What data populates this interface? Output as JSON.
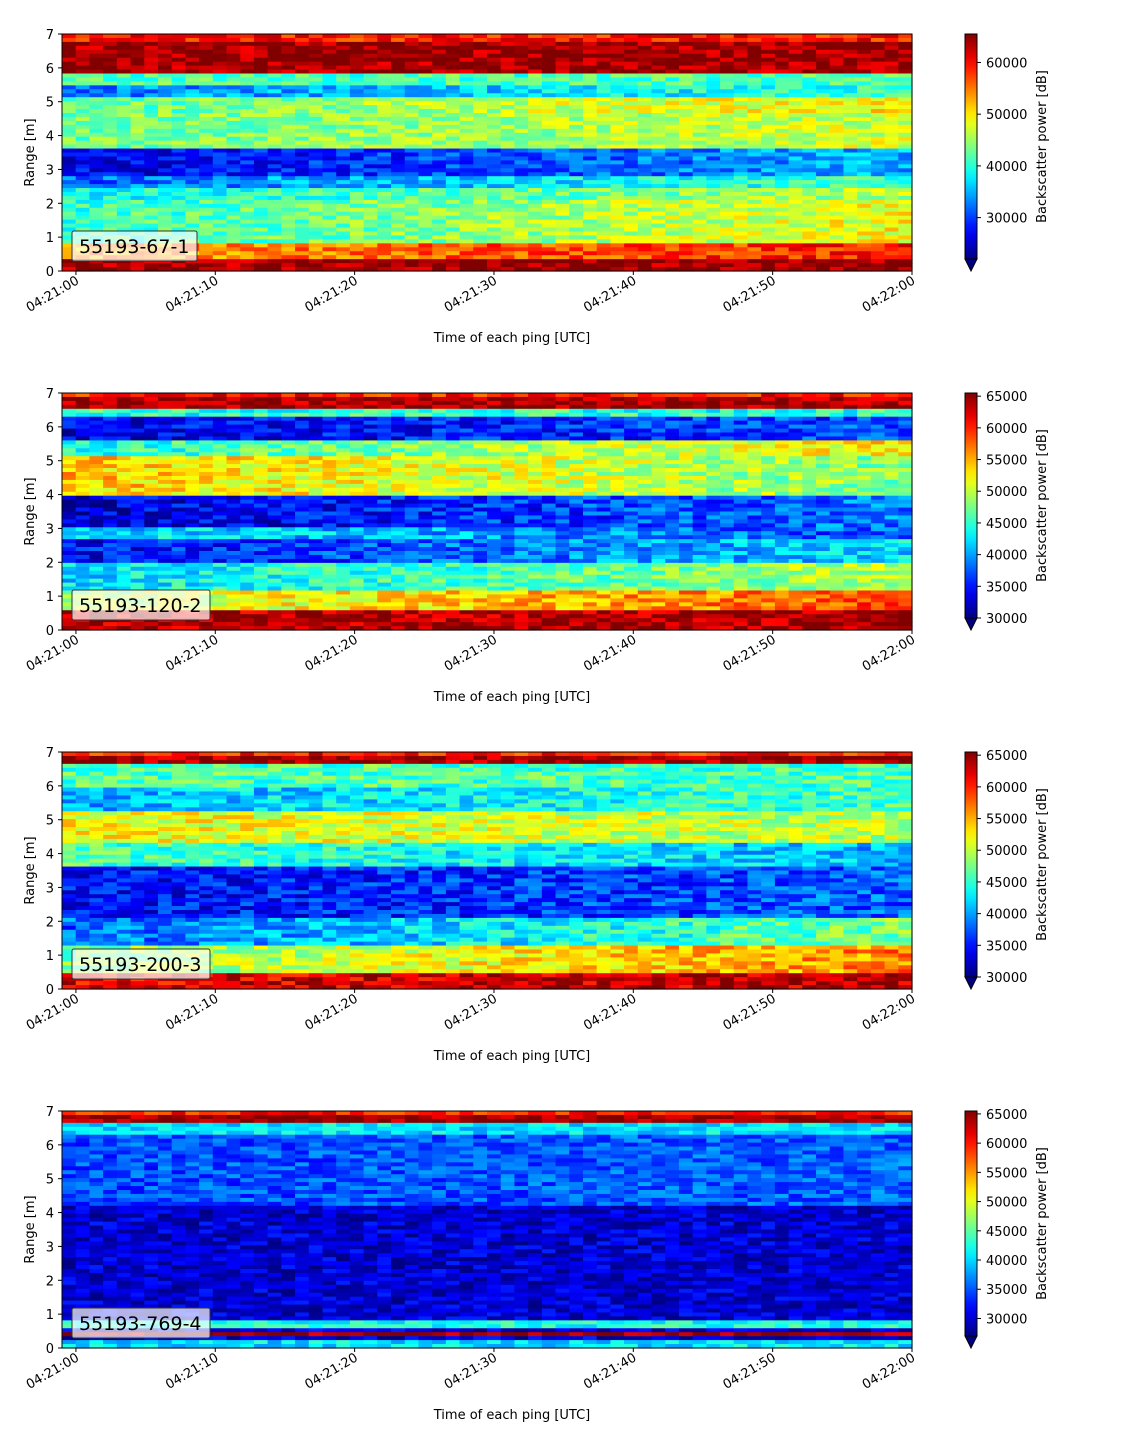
{
  "chart_data": [
    {
      "type": "heatmap",
      "label": "55193-67-1",
      "xlabel": "Time of each ping [UTC]",
      "ylabel": "Range [m]",
      "x_ticks": [
        "04:21:00",
        "04:21:10",
        "04:21:20",
        "04:21:30",
        "04:21:40",
        "04:21:50",
        "04:22:00"
      ],
      "x_range": [
        "04:20:59",
        "04:22:00"
      ],
      "ylim": [
        0,
        7
      ],
      "y_ticks": [
        0,
        1,
        2,
        3,
        4,
        5,
        6,
        7
      ],
      "colorbar": {
        "label": "Backscatter power [dB]",
        "vmin": 22000,
        "vmax": 65500,
        "ticks": [
          30000,
          40000,
          50000,
          60000
        ],
        "extend": "min",
        "colormap": "jet"
      },
      "profile": {
        "bottom_band": [
          0.25,
          1.15
        ],
        "bands": [
          {
            "center": 6.85,
            "width": 0.25,
            "level": 0.97,
            "t1": 0.97
          },
          {
            "center": 6.35,
            "width": 0.3,
            "level": 0.72,
            "t1": 0.85
          },
          {
            "center": 5.5,
            "width": 0.9,
            "level": 0.42,
            "t1": 0.62
          },
          {
            "center": 4.75,
            "width": 0.25,
            "level": 0.38,
            "t1": 0.55
          },
          {
            "center": 4.4,
            "width": 0.3,
            "level": 0.22,
            "t1": 0.45
          },
          {
            "center": 3.8,
            "width": 0.55,
            "level": 0.1,
            "t1": 0.3
          },
          {
            "center": 2.8,
            "width": 0.7,
            "level": 0.48,
            "t1": 0.58
          },
          {
            "center": 2.15,
            "width": 0.35,
            "level": 0.46,
            "t1": 0.65
          },
          {
            "center": 1.7,
            "width": 0.25,
            "level": 0.25,
            "t1": 0.42
          },
          {
            "center": 1.35,
            "width": 0.2,
            "level": 0.45,
            "t1": 0.45
          }
        ],
        "noise": 0.09
      }
    },
    {
      "type": "heatmap",
      "label": "55193-120-2",
      "xlabel": "Time of each ping [UTC]",
      "ylabel": "Range [m]",
      "x_ticks": [
        "04:21:00",
        "04:21:10",
        "04:21:20",
        "04:21:30",
        "04:21:40",
        "04:21:50",
        "04:22:00"
      ],
      "x_range": [
        "04:20:59",
        "04:22:00"
      ],
      "ylim": [
        0,
        7
      ],
      "y_ticks": [
        0,
        1,
        2,
        3,
        4,
        5,
        6,
        7
      ],
      "colorbar": {
        "label": "Backscatter power [dB]",
        "vmin": 30000,
        "vmax": 65500,
        "ticks": [
          30000,
          35000,
          40000,
          45000,
          50000,
          55000,
          60000,
          65000
        ],
        "extend": "min",
        "colormap": "jet"
      },
      "profile": {
        "bottom_band": [
          0.15,
          0.45
        ],
        "bands": [
          {
            "center": 6.75,
            "width": 0.35,
            "level": 0.95,
            "t1": 0.97
          },
          {
            "center": 6.1,
            "width": 0.4,
            "level": 0.55,
            "t1": 0.8
          },
          {
            "center": 5.4,
            "width": 0.5,
            "level": 0.35,
            "t1": 0.55
          },
          {
            "center": 4.8,
            "width": 0.4,
            "level": 0.12,
            "t1": 0.35
          },
          {
            "center": 4.15,
            "width": 0.2,
            "level": 0.35,
            "t1": 0.2
          },
          {
            "center": 3.6,
            "width": 0.6,
            "level": 0.08,
            "t1": 0.25
          },
          {
            "center": 2.4,
            "width": 0.7,
            "level": 0.68,
            "t1": 0.5
          },
          {
            "center": 1.7,
            "width": 0.3,
            "level": 0.4,
            "t1": 0.65
          },
          {
            "center": 1.0,
            "width": 0.35,
            "level": 0.1,
            "t1": 0.2
          },
          {
            "center": 0.6,
            "width": 0.15,
            "level": 0.42,
            "t1": 0.42
          }
        ],
        "noise": 0.1
      }
    },
    {
      "type": "heatmap",
      "label": "55193-200-3",
      "xlabel": "Time of each ping [UTC]",
      "ylabel": "Range [m]",
      "x_ticks": [
        "04:21:00",
        "04:21:10",
        "04:21:20",
        "04:21:30",
        "04:21:40",
        "04:21:50",
        "04:22:00"
      ],
      "x_range": [
        "04:20:59",
        "04:22:00"
      ],
      "ylim": [
        0,
        7
      ],
      "y_ticks": [
        0,
        1,
        2,
        3,
        4,
        5,
        6,
        7
      ],
      "colorbar": {
        "label": "Backscatter power [dB]",
        "vmin": 30000,
        "vmax": 65500,
        "ticks": [
          30000,
          35000,
          40000,
          45000,
          50000,
          55000,
          60000,
          65000
        ],
        "extend": "min",
        "colormap": "jet"
      },
      "profile": {
        "bottom_band": [
          0.15,
          0.4
        ],
        "bands": [
          {
            "center": 6.8,
            "width": 0.3,
            "level": 0.9,
            "t1": 0.95
          },
          {
            "center": 6.1,
            "width": 0.45,
            "level": 0.5,
            "t1": 0.75
          },
          {
            "center": 5.3,
            "width": 0.6,
            "level": 0.22,
            "t1": 0.5
          },
          {
            "center": 4.3,
            "width": 0.8,
            "level": 0.12,
            "t1": 0.22
          },
          {
            "center": 3.0,
            "width": 0.4,
            "level": 0.45,
            "t1": 0.3
          },
          {
            "center": 2.2,
            "width": 0.6,
            "level": 0.62,
            "t1": 0.55
          },
          {
            "center": 1.4,
            "width": 0.4,
            "level": 0.3,
            "t1": 0.45
          },
          {
            "center": 0.75,
            "width": 0.3,
            "level": 0.45,
            "t1": 0.45
          }
        ],
        "noise": 0.1
      }
    },
    {
      "type": "heatmap",
      "label": "55193-769-4",
      "xlabel": "Time of each ping [UTC]",
      "ylabel": "Range [m]",
      "x_ticks": [
        "04:21:00",
        "04:21:10",
        "04:21:20",
        "04:21:30",
        "04:21:40",
        "04:21:50",
        "04:22:00"
      ],
      "x_range": [
        "04:20:59",
        "04:22:00"
      ],
      "ylim": [
        0,
        7
      ],
      "y_ticks": [
        0,
        1,
        2,
        3,
        4,
        5,
        6,
        7
      ],
      "colorbar": {
        "label": "Backscatter power [dB]",
        "vmin": 27000,
        "vmax": 65500,
        "ticks": [
          30000,
          35000,
          40000,
          45000,
          50000,
          55000,
          60000,
          65000
        ],
        "extend": "min",
        "colormap": "jet"
      },
      "profile": {
        "bottom_band": [
          0.15,
          0.3
        ],
        "bands": [
          {
            "center": 6.85,
            "width": 0.2,
            "level": 0.35,
            "t1": 0.35
          },
          {
            "center": 6.55,
            "width": 0.12,
            "level": 0.97,
            "t1": 0.97
          },
          {
            "center": 6.3,
            "width": 0.2,
            "level": 0.4,
            "t1": 0.4
          },
          {
            "center": 4.5,
            "width": 3.2,
            "level": 0.08,
            "t1": 0.08
          },
          {
            "center": 1.9,
            "width": 1.8,
            "level": 0.2,
            "t1": 0.22
          },
          {
            "center": 0.55,
            "width": 0.3,
            "level": 0.35,
            "t1": 0.35
          }
        ],
        "noise": 0.08
      }
    }
  ]
}
